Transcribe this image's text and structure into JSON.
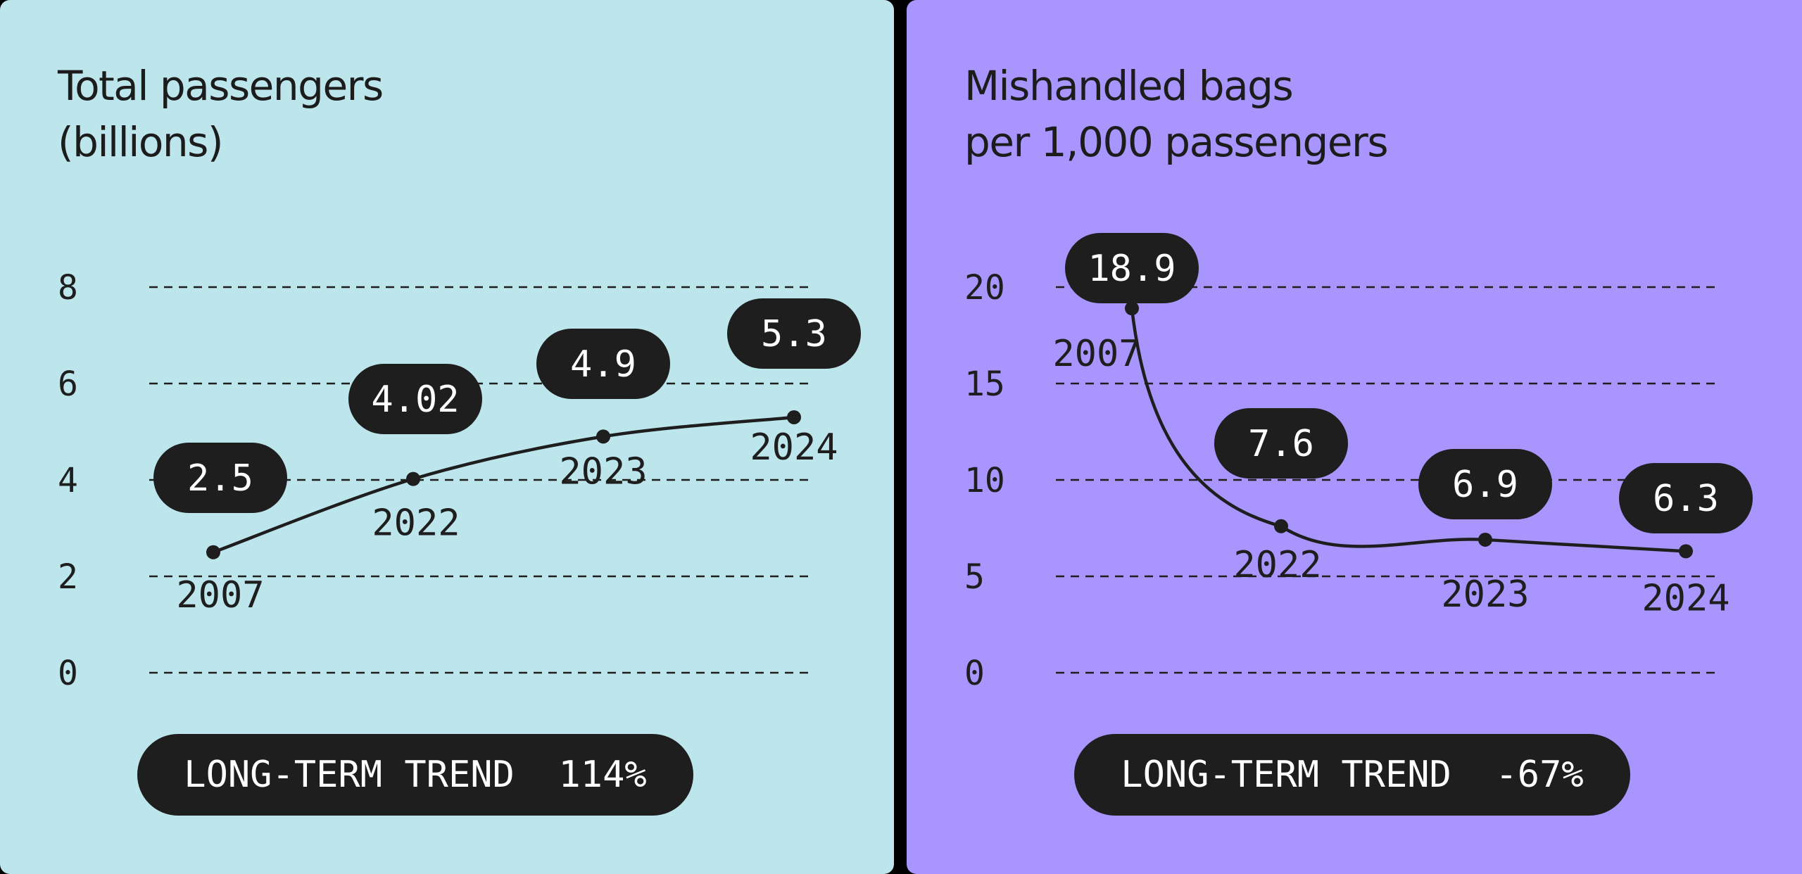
{
  "colors": {
    "page_background": "#000000",
    "dark_ink": "#1e1e1e",
    "label_text": "#ffffff"
  },
  "panels": [
    {
      "title_lines": [
        "Total passengers",
        "(billions)"
      ],
      "trend": {
        "label": "LONG-TERM TREND",
        "value": "114%"
      },
      "background": "#bce6ec"
    },
    {
      "title_lines": [
        "Mishandled bags",
        "per 1,000 passengers"
      ],
      "trend": {
        "label": "LONG-TERM TREND",
        "value": "-67%"
      },
      "background": "#a895fd"
    }
  ],
  "chart_data": [
    {
      "type": "line",
      "title": "Total passengers (billions)",
      "x": [
        "2007",
        "2022",
        "2023",
        "2024"
      ],
      "series": [
        {
          "values": [
            2.5,
            4.02,
            4.9,
            5.3
          ],
          "value_labels": [
            "2.5",
            "4.02",
            "4.9",
            "5.3"
          ]
        }
      ],
      "yticks": [
        "0",
        "2",
        "4",
        "6",
        "8"
      ],
      "ytick_values": [
        0,
        2,
        4,
        6,
        8
      ],
      "ylim": [
        0,
        8
      ],
      "grid": true,
      "grid_style": "dashed",
      "legend": "none"
    },
    {
      "type": "line",
      "title": "Mishandled bags per 1,000 passengers",
      "x": [
        "2007",
        "2022",
        "2023",
        "2024"
      ],
      "series": [
        {
          "values": [
            18.9,
            7.6,
            6.9,
            6.3
          ],
          "value_labels": [
            "18.9",
            "7.6",
            "6.9",
            "6.3"
          ]
        }
      ],
      "yticks": [
        "0",
        "5",
        "10",
        "15",
        "20"
      ],
      "ytick_values": [
        0,
        5,
        10,
        15,
        20
      ],
      "ylim": [
        0,
        20
      ],
      "grid": true,
      "grid_style": "dashed",
      "legend": "none"
    }
  ]
}
